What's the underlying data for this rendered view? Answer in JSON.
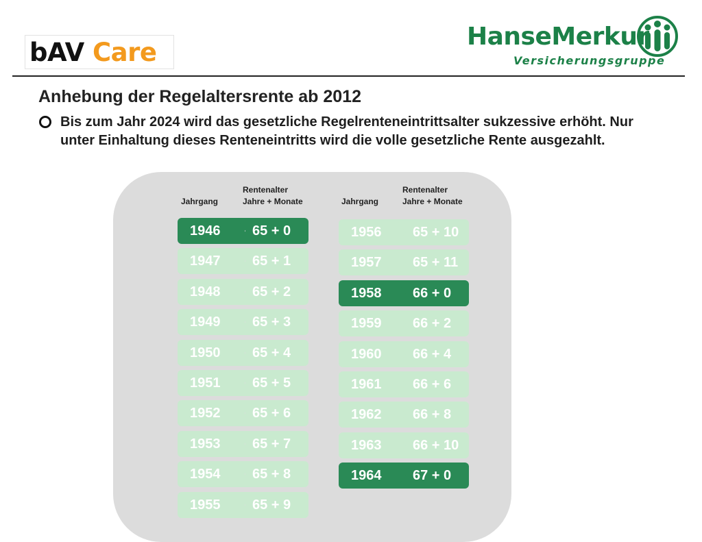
{
  "header": {
    "brand_left_1": "bAV",
    "brand_left_2": "Care",
    "brand_right": "HanseMerkur",
    "brand_right_sub": "Versicherungsgruppe",
    "brand_color": "#1c8148",
    "accent_color": "#f39a1e"
  },
  "content": {
    "title": "Anhebung der Regelaltersrente ab 2012",
    "bullet_icon": "circle-bullet-icon",
    "text": "Bis zum Jahr 2024 wird das gesetzliche Regelrenteneintrittsalter sukzessive erhöht. Nur unter Einhaltung dieses Renteneintritts wird die volle gesetzliche Rente ausgezahlt."
  },
  "table": {
    "col_year": "Jahrgang",
    "col_age_1": "Rentenalter",
    "col_age_2": "Jahre + Monate",
    "highlight_color": "#2a8a56",
    "normal_color": "#c9eacf",
    "left": [
      {
        "year": "1946",
        "age": "65 + 0",
        "highlight": true
      },
      {
        "year": "1947",
        "age": "65 + 1",
        "highlight": false
      },
      {
        "year": "1948",
        "age": "65 + 2",
        "highlight": false
      },
      {
        "year": "1949",
        "age": "65 + 3",
        "highlight": false
      },
      {
        "year": "1950",
        "age": "65 + 4",
        "highlight": false
      },
      {
        "year": "1951",
        "age": "65 + 5",
        "highlight": false
      },
      {
        "year": "1952",
        "age": "65 + 6",
        "highlight": false
      },
      {
        "year": "1953",
        "age": "65 + 7",
        "highlight": false
      },
      {
        "year": "1954",
        "age": "65 + 8",
        "highlight": false
      },
      {
        "year": "1955",
        "age": "65 + 9",
        "highlight": false
      }
    ],
    "right": [
      {
        "year": "1956",
        "age": "65 + 10",
        "highlight": false
      },
      {
        "year": "1957",
        "age": "65 + 11",
        "highlight": false
      },
      {
        "year": "1958",
        "age": "66 + 0",
        "highlight": true
      },
      {
        "year": "1959",
        "age": "66 + 2",
        "highlight": false
      },
      {
        "year": "1960",
        "age": "66 + 4",
        "highlight": false
      },
      {
        "year": "1961",
        "age": "66 + 6",
        "highlight": false
      },
      {
        "year": "1962",
        "age": "66 + 8",
        "highlight": false
      },
      {
        "year": "1963",
        "age": "66 + 10",
        "highlight": false
      },
      {
        "year": "1964",
        "age": "67 + 0",
        "highlight": true
      }
    ]
  }
}
